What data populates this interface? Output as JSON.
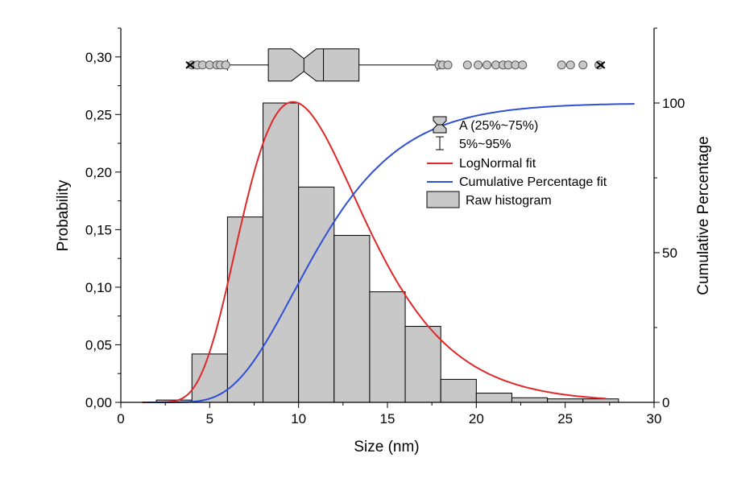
{
  "chart_data": {
    "type": "bar",
    "xlabel": "Size (nm)",
    "ylabel": "Probability",
    "y2label": "Cumulative Percentage",
    "xlim": [
      0,
      30
    ],
    "ylim": [
      0,
      0.325
    ],
    "y2lim": [
      0,
      125
    ],
    "x_ticks": [
      0,
      5,
      10,
      15,
      20,
      25,
      30
    ],
    "x_tick_labels": [
      "0",
      "5",
      "10",
      "15",
      "20",
      "25",
      "30"
    ],
    "y_ticks": [
      0,
      0.05,
      0.1,
      0.15,
      0.2,
      0.25,
      0.3
    ],
    "y_tick_labels": [
      "0,00",
      "0,05",
      "0,10",
      "0,15",
      "0,20",
      "0,25",
      "0,30"
    ],
    "y2_ticks": [
      0,
      50,
      100
    ],
    "y2_tick_labels": [
      "0",
      "50",
      "100"
    ],
    "histogram": {
      "name": "Raw histogram",
      "bin_edges": [
        2,
        4,
        6,
        8,
        10,
        12,
        14,
        16,
        18,
        20,
        22,
        24,
        26,
        28
      ],
      "values": [
        0.002,
        0.042,
        0.161,
        0.26,
        0.187,
        0.145,
        0.096,
        0.066,
        0.02,
        0.008,
        0.004,
        0.003,
        0.003
      ],
      "fill": "#c8c8c8",
      "stroke": "#000000"
    },
    "lognormal_fit": {
      "name": "LogNormal fit",
      "color": "#e0282a",
      "peak_x": 9.4,
      "peak_y": 0.26,
      "mu": 2.393,
      "sigma": 0.35
    },
    "cumulative_fit": {
      "name": "Cumulative Percentage fit",
      "color": "#2f4fd6",
      "x_end": 29
    },
    "box_plot": {
      "y_level": 0.293,
      "whisker_low": 6.0,
      "q1": 8.3,
      "notch_low": 9.6,
      "median": 10.3,
      "notch_high": 11.0,
      "q3": 13.4,
      "whisker_high": 17.8,
      "mean": 11.4,
      "outliers_low": [
        4.0,
        4.3,
        4.6,
        5.0,
        5.4,
        5.6,
        5.9
      ],
      "outliers_high": [
        17.9,
        18.1,
        18.4,
        19.5,
        20.1,
        20.6,
        21.1,
        21.5,
        21.8,
        22.2,
        22.6,
        24.8,
        25.3,
        26.0,
        26.9
      ],
      "min_marker": 3.9,
      "max_marker": 27.0
    },
    "legend": [
      {
        "label": "A (25%~75%)",
        "symbol": "box-notch"
      },
      {
        "label": "5%~95%",
        "symbol": "whisker"
      },
      {
        "label": "LogNormal fit",
        "symbol": "line-red"
      },
      {
        "label": "Cumulative Percentage fit",
        "symbol": "line-blue"
      },
      {
        "label": "Raw histogram",
        "symbol": "bar"
      }
    ],
    "legend_position": "top-right",
    "grid": false
  }
}
